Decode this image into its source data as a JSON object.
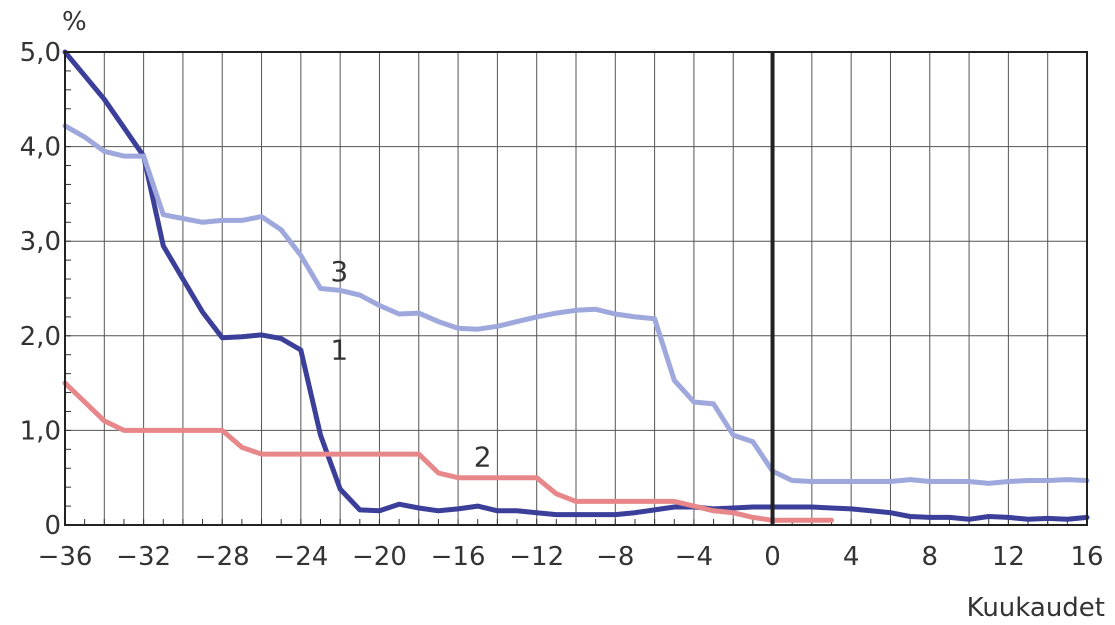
{
  "chart_data": {
    "type": "line",
    "y_unit": "%",
    "xlabel": "Kuukaudet",
    "xlim": [
      -36,
      16
    ],
    "ylim": [
      0,
      5
    ],
    "grid": true,
    "reference_line_x": 0,
    "x_ticks": [
      -36,
      -32,
      -28,
      -24,
      -20,
      -16,
      -12,
      -8,
      -4,
      0,
      4,
      8,
      12,
      16
    ],
    "x_tick_labels": [
      "−36",
      "−32",
      "−28",
      "−24",
      "−20",
      "−16",
      "−12",
      "−8",
      "−4",
      "0",
      "4",
      "8",
      "12",
      "16"
    ],
    "y_ticks": [
      0,
      1,
      2,
      3,
      4,
      5
    ],
    "y_tick_labels": [
      "0",
      "1,0",
      "2,0",
      "3,0",
      "4,0",
      "5,0"
    ],
    "series": [
      {
        "name": "1",
        "label_at": [
          -22.5,
          1.75
        ],
        "color": "#3b3f99",
        "x": [
          -36,
          -35,
          -34,
          -33,
          -32,
          -31,
          -30,
          -29,
          -28,
          -27,
          -26,
          -25,
          -24,
          -23,
          -22,
          -21,
          -20,
          -19,
          -18,
          -17,
          -16,
          -15,
          -14,
          -13,
          -12,
          -11,
          -10,
          -9,
          -8,
          -7,
          -6,
          -5,
          -4,
          -3,
          -2,
          -1,
          0,
          1,
          2,
          3,
          4,
          5,
          6,
          7,
          8,
          9,
          10,
          11,
          12,
          13,
          14,
          15,
          16
        ],
        "values": [
          5.0,
          4.75,
          4.5,
          4.2,
          3.9,
          2.95,
          2.6,
          2.25,
          1.98,
          1.99,
          2.01,
          1.97,
          1.85,
          0.95,
          0.38,
          0.16,
          0.15,
          0.22,
          0.18,
          0.15,
          0.17,
          0.2,
          0.15,
          0.15,
          0.13,
          0.11,
          0.11,
          0.11,
          0.11,
          0.13,
          0.16,
          0.19,
          0.19,
          0.17,
          0.18,
          0.19,
          0.19,
          0.19,
          0.19,
          0.18,
          0.17,
          0.15,
          0.13,
          0.09,
          0.08,
          0.08,
          0.06,
          0.09,
          0.08,
          0.06,
          0.07,
          0.06,
          0.08
        ]
      },
      {
        "name": "2",
        "label_at": [
          -15.2,
          0.62
        ],
        "color": "#e8878a",
        "x": [
          -36,
          -35,
          -34,
          -33,
          -32,
          -31,
          -30,
          -29,
          -28,
          -27,
          -26,
          -25,
          -24,
          -23,
          -22,
          -21,
          -20,
          -19,
          -18,
          -17,
          -16,
          -15,
          -14,
          -13,
          -12,
          -11,
          -10,
          -9,
          -8,
          -7,
          -6,
          -5,
          -4,
          -3,
          -2,
          -1,
          0,
          1,
          2,
          3
        ],
        "values": [
          1.5,
          1.3,
          1.1,
          1.0,
          1.0,
          1.0,
          1.0,
          1.0,
          1.0,
          0.82,
          0.75,
          0.75,
          0.75,
          0.75,
          0.75,
          0.75,
          0.75,
          0.75,
          0.75,
          0.55,
          0.5,
          0.5,
          0.5,
          0.5,
          0.5,
          0.33,
          0.25,
          0.25,
          0.25,
          0.25,
          0.25,
          0.25,
          0.2,
          0.15,
          0.13,
          0.08,
          0.05,
          0.05,
          0.05,
          0.05
        ]
      },
      {
        "name": "3",
        "label_at": [
          -22.5,
          2.58
        ],
        "color": "#9ea8dc",
        "x": [
          -36,
          -35,
          -34,
          -33,
          -32,
          -31,
          -30,
          -29,
          -28,
          -27,
          -26,
          -25,
          -24,
          -23,
          -22,
          -21,
          -20,
          -19,
          -18,
          -17,
          -16,
          -15,
          -14,
          -13,
          -12,
          -11,
          -10,
          -9,
          -8,
          -7,
          -6,
          -5,
          -4,
          -3,
          -2,
          -1,
          0,
          1,
          2,
          3,
          4,
          5,
          6,
          7,
          8,
          9,
          10,
          11,
          12,
          13,
          14,
          15,
          16
        ],
        "values": [
          4.22,
          4.1,
          3.95,
          3.9,
          3.9,
          3.28,
          3.24,
          3.2,
          3.22,
          3.22,
          3.26,
          3.12,
          2.85,
          2.5,
          2.48,
          2.43,
          2.32,
          2.23,
          2.24,
          2.15,
          2.08,
          2.07,
          2.1,
          2.15,
          2.2,
          2.24,
          2.27,
          2.28,
          2.23,
          2.2,
          2.18,
          1.53,
          1.3,
          1.28,
          0.95,
          0.88,
          0.57,
          0.47,
          0.46,
          0.46,
          0.46,
          0.46,
          0.46,
          0.48,
          0.46,
          0.46,
          0.46,
          0.44,
          0.46,
          0.47,
          0.47,
          0.48,
          0.47
        ]
      }
    ]
  }
}
